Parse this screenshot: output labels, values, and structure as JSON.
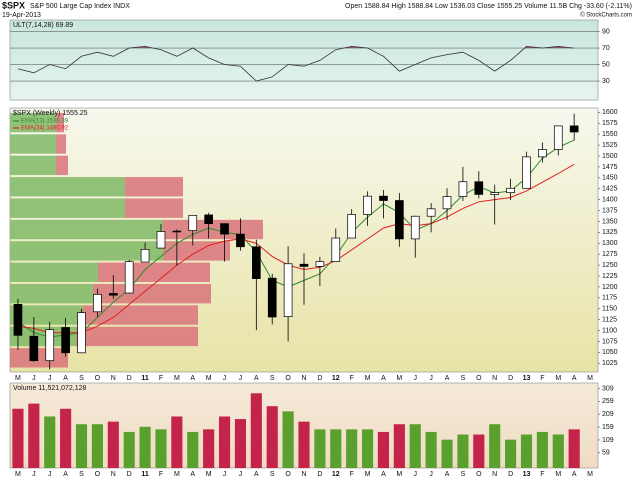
{
  "header": {
    "symbol": "$SPX",
    "name": "S&P 500 Large Cap Index INDX",
    "date": "19-Apr-2013",
    "quote": "Open 1588.84  High 1588.84  Low 1536.03  Close 1555.25  Volume 11.5B  Chg -33.60 (-2.11%)",
    "credit": "© StockCharts.com"
  },
  "chart_data": [
    {
      "type": "line",
      "title": "ULT(7,14,28) 69.89",
      "color": "#333333",
      "overbought_color": "#8b4d7a",
      "values": [
        45,
        40,
        50,
        45,
        60,
        65,
        60,
        70,
        72,
        68,
        60,
        70,
        58,
        50,
        48,
        30,
        35,
        50,
        48,
        55,
        68,
        72,
        70,
        60,
        42,
        50,
        58,
        62,
        65,
        55,
        42,
        55,
        72,
        70,
        72,
        69.89,
        null
      ],
      "ylim": [
        7,
        104
      ],
      "yticks": [
        30,
        50,
        70,
        90
      ]
    },
    {
      "type": "candlestick",
      "title": "$SPX (Weekly) 1555.25",
      "categories": [
        "M",
        "J",
        "J",
        "A",
        "S",
        "O",
        "N",
        "D",
        "11",
        "F",
        "M",
        "A",
        "M",
        "J",
        "J",
        "A",
        "S",
        "O",
        "N",
        "D",
        "12",
        "F",
        "M",
        "A",
        "M",
        "J",
        "J",
        "A",
        "S",
        "O",
        "N",
        "D",
        "13",
        "F",
        "M",
        "A",
        "M"
      ],
      "open": [
        1160,
        1087,
        1031,
        1107,
        1049,
        1143,
        1185,
        1186,
        1257,
        1289,
        1328,
        1329,
        1365,
        1345,
        1321,
        1292,
        1220,
        1132,
        1252,
        1247,
        1258,
        1312,
        1366,
        1408,
        1398,
        1310,
        1362,
        1379,
        1407,
        1441,
        1412,
        1416,
        1426,
        1498,
        1515,
        1569,
        null
      ],
      "high": [
        1173,
        1131,
        1120,
        1129,
        1150,
        1196,
        1227,
        1262,
        1302,
        1344,
        1332,
        1364,
        1370,
        1345,
        1357,
        1308,
        1230,
        1293,
        1277,
        1269,
        1334,
        1378,
        1419,
        1422,
        1415,
        1363,
        1392,
        1426,
        1475,
        1465,
        1434,
        1448,
        1510,
        1531,
        1570,
        1597,
        null
      ],
      "low": [
        1056,
        1028,
        1011,
        1040,
        1048,
        1131,
        1173,
        1186,
        1257,
        1289,
        1249,
        1295,
        1311,
        1258,
        1283,
        1101,
        1114,
        1075,
        1159,
        1202,
        1258,
        1312,
        1340,
        1357,
        1292,
        1267,
        1325,
        1354,
        1397,
        1403,
        1343,
        1399,
        1426,
        1485,
        1501,
        1536,
        null
      ],
      "close": [
        1089,
        1031,
        1102,
        1049,
        1141,
        1183,
        1181,
        1258,
        1286,
        1327,
        1326,
        1364,
        1345,
        1321,
        1292,
        1219,
        1131,
        1253,
        1247,
        1258,
        1312,
        1366,
        1408,
        1398,
        1310,
        1362,
        1379,
        1407,
        1441,
        1412,
        1416,
        1426,
        1498,
        1515,
        1569,
        1555,
        null
      ],
      "series": [
        {
          "name": "EMA(13) 1536.39",
          "color": "#2e8b2e",
          "values": [
            1120,
            1095,
            1085,
            1090,
            1095,
            1130,
            1165,
            1195,
            1240,
            1270,
            1300,
            1320,
            1335,
            1325,
            1320,
            1280,
            1215,
            1200,
            1215,
            1230,
            1270,
            1325,
            1360,
            1390,
            1370,
            1330,
            1345,
            1375,
            1410,
            1430,
            1415,
            1420,
            1450,
            1495,
            1520,
            1536.39,
            null
          ]
        },
        {
          "name": "EMA(34) 1480.92",
          "color": "#e02020",
          "values": [
            1110,
            1105,
            1095,
            1095,
            1095,
            1110,
            1130,
            1160,
            1190,
            1220,
            1250,
            1275,
            1295,
            1305,
            1310,
            1300,
            1270,
            1250,
            1240,
            1245,
            1260,
            1285,
            1310,
            1335,
            1345,
            1340,
            1345,
            1360,
            1380,
            1395,
            1400,
            1405,
            1420,
            1440,
            1460,
            1480.92,
            null
          ]
        }
      ],
      "volume_by_price": {
        "bins": [
          1013,
          1062,
          1111,
          1160,
          1209,
          1258,
          1307,
          1356,
          1405,
          1454,
          1503,
          1552,
          1601
        ],
        "up": [
          0,
          66,
          73,
          83,
          88,
          153,
          153,
          115,
          115,
          46,
          46,
          46
        ],
        "down": [
          58,
          122,
          115,
          118,
          112,
          67,
          100,
          58,
          58,
          12,
          10,
          8
        ],
        "up_color": "#7fb866",
        "down_color": "#d9737b",
        "xlim": [
          0,
          588
        ]
      },
      "ylim": [
        1005,
        1610
      ],
      "yticks": [
        1025,
        1050,
        1075,
        1100,
        1125,
        1150,
        1175,
        1200,
        1225,
        1250,
        1275,
        1300,
        1325,
        1350,
        1375,
        1400,
        1425,
        1450,
        1475,
        1500,
        1525,
        1550,
        1575,
        1600
      ]
    },
    {
      "type": "bar",
      "title": "Volume 11,521,072,128",
      "up_color": "#5aa02c",
      "down_color": "#c4234a",
      "categories": [
        "M",
        "J",
        "J",
        "A",
        "S",
        "O",
        "N",
        "D",
        "11",
        "F",
        "M",
        "A",
        "M",
        "J",
        "J",
        "A",
        "S",
        "O",
        "N",
        "D",
        "12",
        "F",
        "M",
        "A",
        "M",
        "J",
        "J",
        "A",
        "S",
        "O",
        "N",
        "D",
        "13",
        "F",
        "M",
        "A",
        "M"
      ],
      "values": [
        230,
        250,
        200,
        230,
        170,
        170,
        180,
        140,
        160,
        150,
        200,
        140,
        150,
        200,
        190,
        290,
        240,
        220,
        180,
        150,
        150,
        150,
        150,
        140,
        170,
        170,
        140,
        110,
        130,
        130,
        170,
        110,
        130,
        140,
        130,
        150,
        null
      ],
      "ylim": [
        0,
        330
      ],
      "yticks": [
        59,
        109,
        159,
        209,
        259,
        309
      ]
    }
  ]
}
